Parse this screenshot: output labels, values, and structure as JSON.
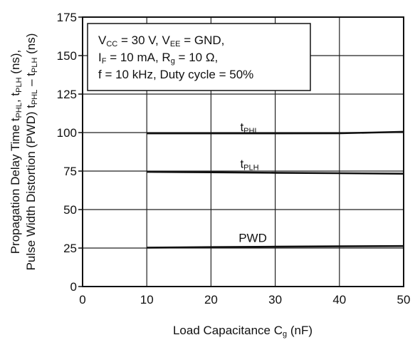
{
  "chart_data": {
    "type": "line",
    "xlabel": {
      "main": "Load Capacitance  C",
      "sub": "g",
      "unit": " (nF)"
    },
    "ylabel": {
      "line1": [
        {
          "t": "Propagation Delay Time  t"
        },
        {
          "t": "PHL",
          "sub": true
        },
        {
          "t": ", t"
        },
        {
          "t": "PLH",
          "sub": true
        },
        {
          "t": " (ns),"
        }
      ],
      "line2": [
        {
          "t": "Pulse Width Distortion (PWD)  t"
        },
        {
          "t": "PHL",
          "sub": true
        },
        {
          "t": " – t"
        },
        {
          "t": "PLH",
          "sub": true
        },
        {
          "t": " (ns)"
        }
      ]
    },
    "xlim": [
      0,
      50
    ],
    "ylim": [
      0,
      175
    ],
    "xticks": [
      0,
      10,
      20,
      30,
      40,
      50
    ],
    "yticks": [
      0,
      25,
      50,
      75,
      100,
      125,
      150,
      175
    ],
    "grid": true,
    "series": [
      {
        "name": "tPHL",
        "label_main": "t",
        "label_sub": "PHL",
        "label_at": [
          26,
          101
        ],
        "x": [
          10,
          20,
          30,
          40,
          45,
          50
        ],
        "y": [
          99.5,
          99.5,
          99.5,
          99.6,
          100,
          100.5
        ]
      },
      {
        "name": "tPLH",
        "label_main": "t",
        "label_sub": "PLH",
        "label_at": [
          26,
          77
        ],
        "x": [
          10,
          20,
          30,
          40,
          50
        ],
        "y": [
          74.5,
          74.2,
          73.9,
          73.6,
          73.3
        ]
      },
      {
        "name": "PWD",
        "label_main": "PWD",
        "label_sub": "",
        "label_at": [
          26.5,
          29
        ],
        "x": [
          10,
          20,
          30,
          40,
          50
        ],
        "y": [
          25.3,
          25.6,
          25.9,
          26.1,
          26.3
        ]
      }
    ],
    "annotation_box": {
      "lines": [
        [
          {
            "t": "V"
          },
          {
            "t": "CC",
            "sub": true
          },
          {
            "t": " = 30 V, V"
          },
          {
            "t": "EE",
            "sub": true
          },
          {
            "t": " = GND,"
          }
        ],
        [
          {
            "t": "I"
          },
          {
            "t": "F",
            "sub": true
          },
          {
            "t": " = 10 mA, R"
          },
          {
            "t": "g",
            "sub": true
          },
          {
            "t": " = 10 Ω,"
          }
        ],
        [
          {
            "t": "f = 10 kHz, Duty cycle = 50%"
          }
        ]
      ]
    },
    "colors": {
      "line": "#111111",
      "grid": "#222222",
      "background": "#ffffff"
    }
  }
}
